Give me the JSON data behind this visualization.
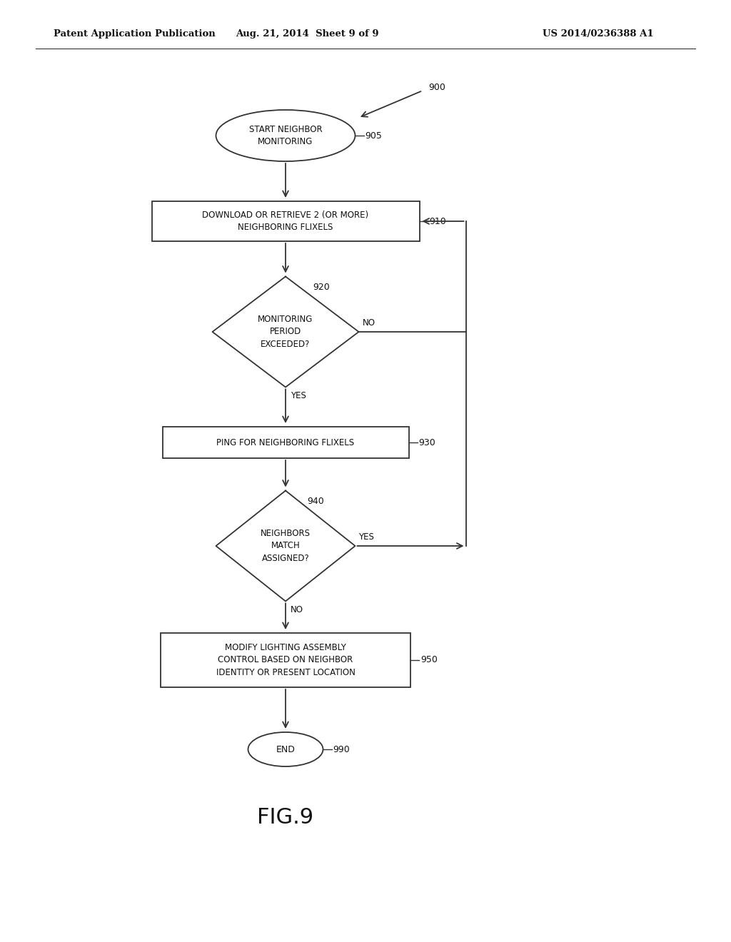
{
  "bg_color": "#ffffff",
  "line_color": "#333333",
  "text_color": "#111111",
  "header_left": "Patent Application Publication",
  "header_mid": "Aug. 21, 2014  Sheet 9 of 9",
  "header_right": "US 2014/0236388 A1",
  "fig_label": "FIG.9",
  "label_900": "900",
  "label_905": "905",
  "label_910": "910",
  "label_920": "920",
  "label_930": "930",
  "label_940": "940",
  "label_950": "950",
  "label_990": "990",
  "node_905_text": "START NEIGHBOR\nMONITORING",
  "node_910_text": "DOWNLOAD OR RETRIEVE 2 (OR MORE)\nNEIGHBORING FLIXELS",
  "node_920_text": "MONITORING\nPERIOD\nEXCEEDED?",
  "node_930_text": "PING FOR NEIGHBORING FLIXELS",
  "node_940_text": "NEIGHBORS\nMATCH\nASSIGNED?",
  "node_950_text": "MODIFY LIGHTING ASSEMBLY\nCONTROL BASED ON NEIGHBOR\nIDENTITY OR PRESENT LOCATION",
  "node_990_text": "END",
  "label_no_920": "NO",
  "label_yes_920": "YES",
  "label_yes_940": "YES",
  "label_no_940": "NO"
}
